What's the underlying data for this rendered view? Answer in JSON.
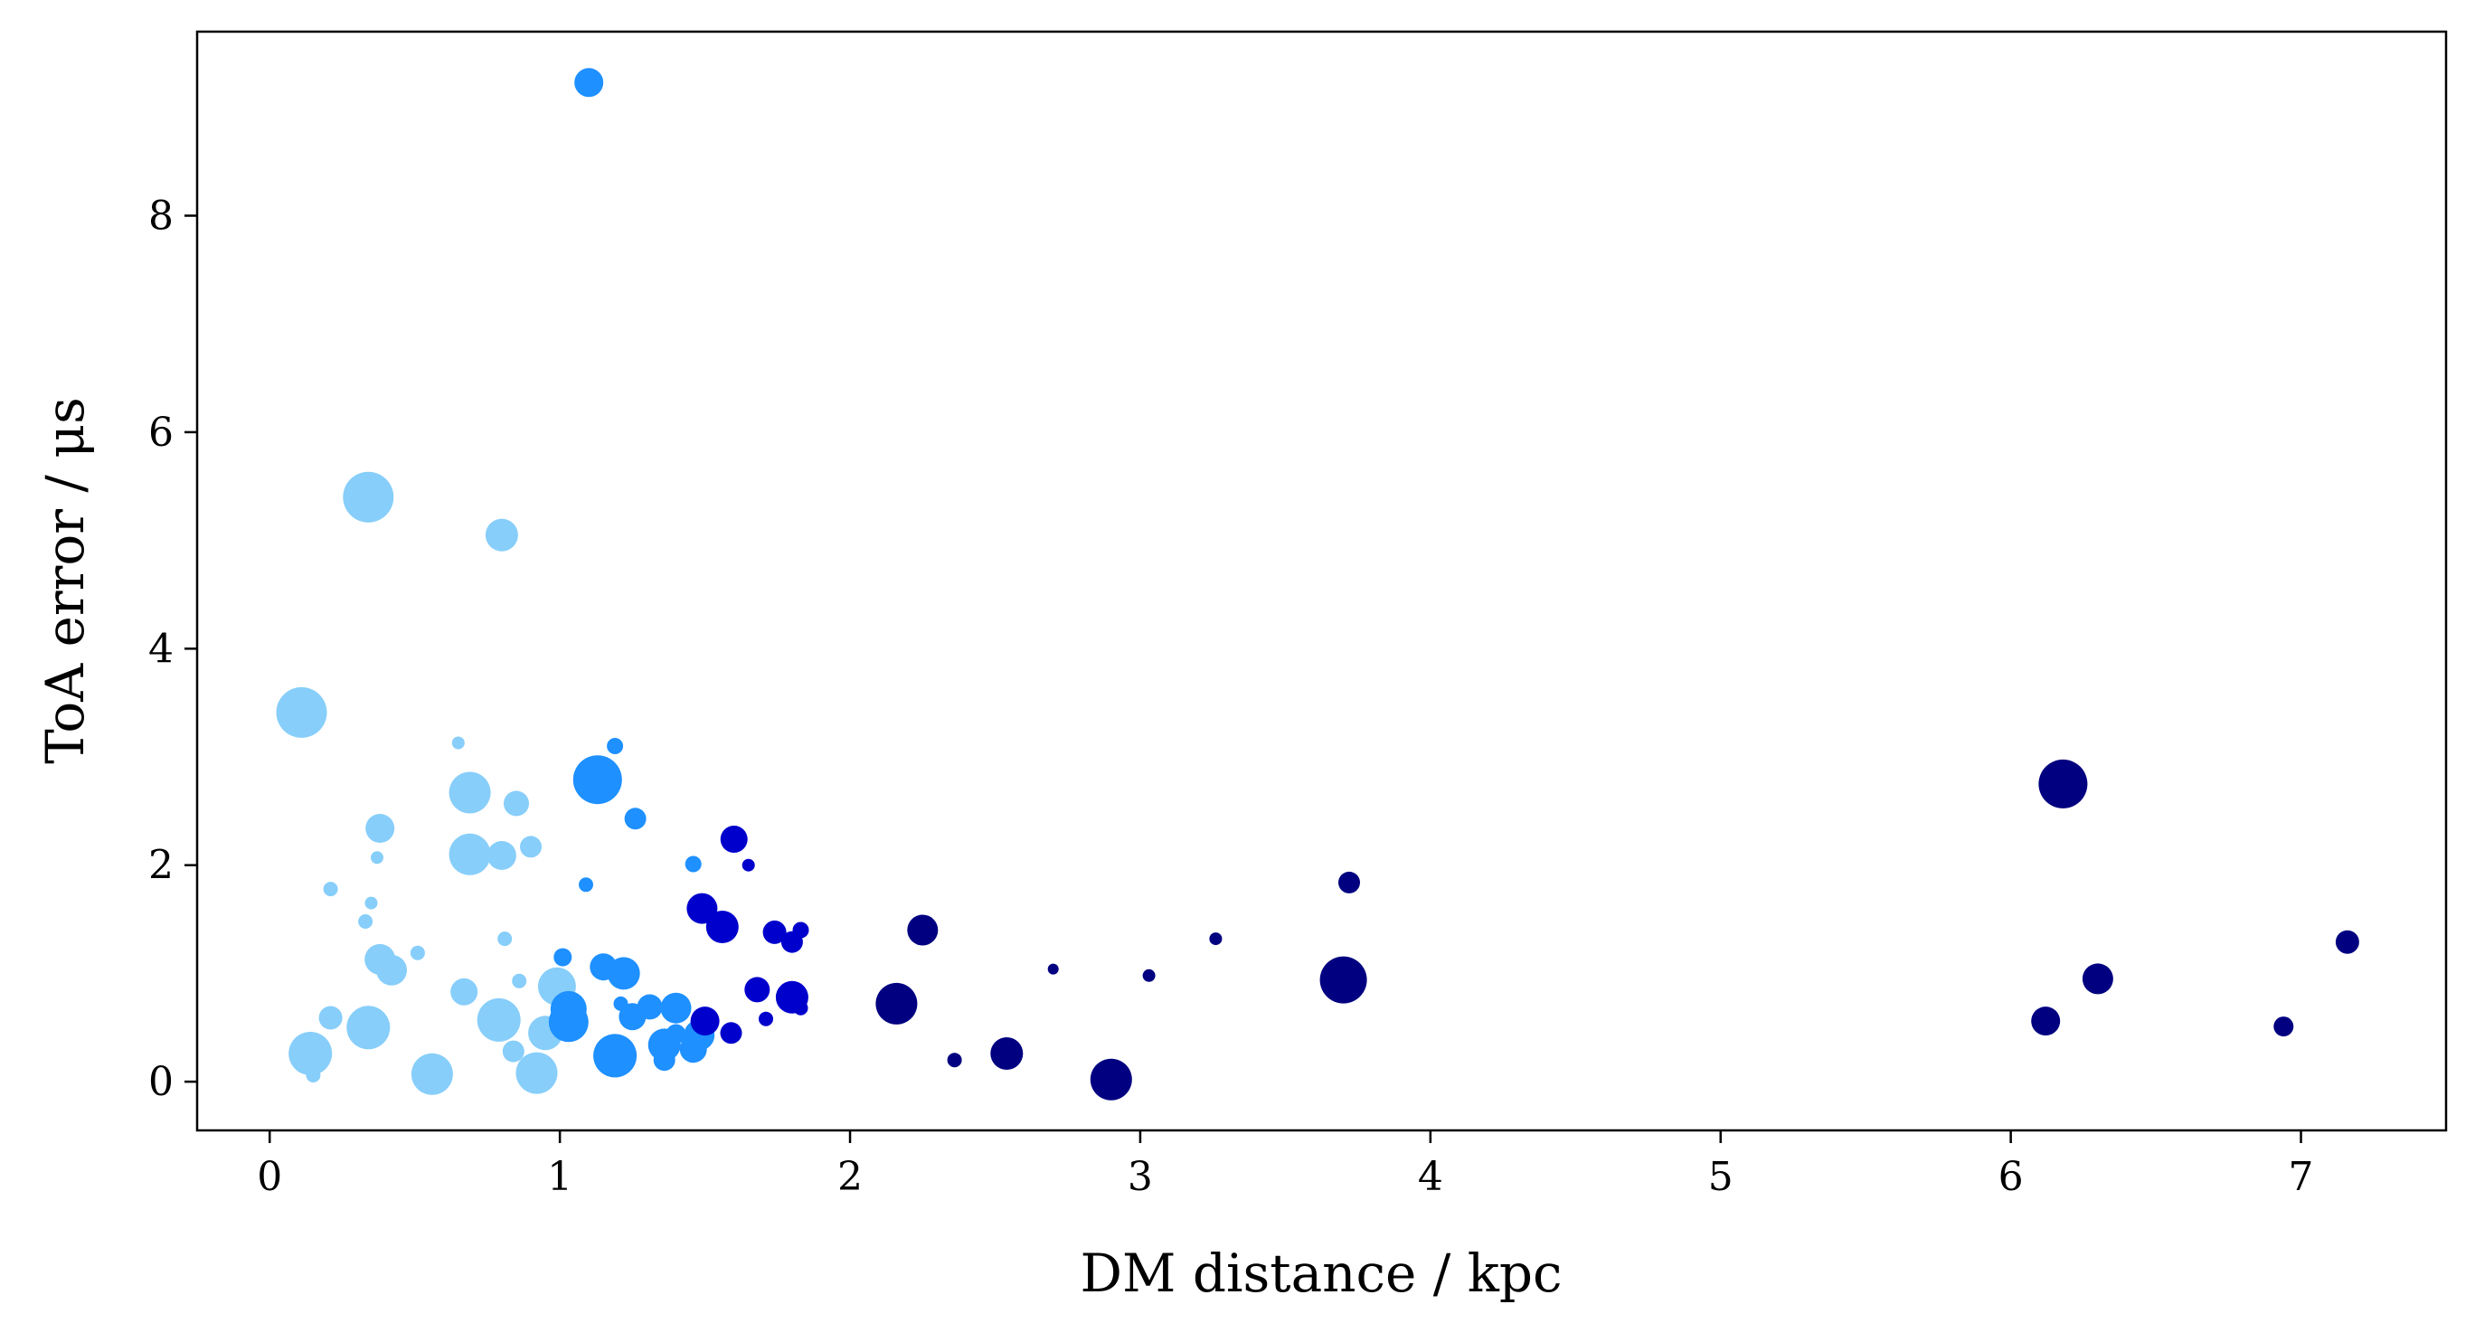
{
  "chart_data": {
    "type": "scatter",
    "title": "",
    "xlabel": "DM distance / kpc",
    "ylabel": "ToA error / μs",
    "xlim": [
      -0.25,
      7.5
    ],
    "ylim": [
      -0.45,
      9.7
    ],
    "xticks": [
      0,
      1,
      2,
      3,
      4,
      5,
      6,
      7
    ],
    "yticks": [
      0,
      2,
      4,
      6,
      8
    ],
    "xtick_labels": [
      "0",
      "1",
      "2",
      "3",
      "4",
      "5",
      "6",
      "7"
    ],
    "ytick_labels": [
      "0",
      "2",
      "4",
      "6",
      "8"
    ],
    "grid": false,
    "legend": "none",
    "colors": {
      "light_sky_blue": "#87CEFA",
      "dodger_blue": "#1E90FF",
      "medium_blue": "#0000CD",
      "navy": "#000080"
    },
    "points": [
      {
        "x": 0.11,
        "y": 3.41,
        "size": 28,
        "color": "#87CEFA"
      },
      {
        "x": 0.34,
        "y": 5.4,
        "size": 28,
        "color": "#87CEFA"
      },
      {
        "x": 0.8,
        "y": 5.05,
        "size": 18,
        "color": "#87CEFA"
      },
      {
        "x": 0.65,
        "y": 3.13,
        "size": 7,
        "color": "#87CEFA"
      },
      {
        "x": 0.69,
        "y": 2.67,
        "size": 23,
        "color": "#87CEFA"
      },
      {
        "x": 0.69,
        "y": 2.1,
        "size": 23,
        "color": "#87CEFA"
      },
      {
        "x": 0.85,
        "y": 2.57,
        "size": 14,
        "color": "#87CEFA"
      },
      {
        "x": 0.38,
        "y": 2.34,
        "size": 16,
        "color": "#87CEFA"
      },
      {
        "x": 0.8,
        "y": 2.09,
        "size": 16,
        "color": "#87CEFA"
      },
      {
        "x": 0.9,
        "y": 2.17,
        "size": 12,
        "color": "#87CEFA"
      },
      {
        "x": 0.37,
        "y": 2.07,
        "size": 7,
        "color": "#87CEFA"
      },
      {
        "x": 0.21,
        "y": 1.78,
        "size": 8,
        "color": "#87CEFA"
      },
      {
        "x": 0.35,
        "y": 1.65,
        "size": 7,
        "color": "#87CEFA"
      },
      {
        "x": 0.33,
        "y": 1.48,
        "size": 8,
        "color": "#87CEFA"
      },
      {
        "x": 0.81,
        "y": 1.32,
        "size": 8,
        "color": "#87CEFA"
      },
      {
        "x": 0.51,
        "y": 1.19,
        "size": 8,
        "color": "#87CEFA"
      },
      {
        "x": 0.38,
        "y": 1.13,
        "size": 17,
        "color": "#87CEFA"
      },
      {
        "x": 0.42,
        "y": 1.03,
        "size": 17,
        "color": "#87CEFA"
      },
      {
        "x": 0.86,
        "y": 0.93,
        "size": 8,
        "color": "#87CEFA"
      },
      {
        "x": 0.99,
        "y": 0.88,
        "size": 21,
        "color": "#87CEFA"
      },
      {
        "x": 0.67,
        "y": 0.83,
        "size": 15,
        "color": "#87CEFA"
      },
      {
        "x": 0.21,
        "y": 0.59,
        "size": 13,
        "color": "#87CEFA"
      },
      {
        "x": 0.79,
        "y": 0.57,
        "size": 24,
        "color": "#87CEFA"
      },
      {
        "x": 0.34,
        "y": 0.5,
        "size": 24,
        "color": "#87CEFA"
      },
      {
        "x": 0.95,
        "y": 0.45,
        "size": 19,
        "color": "#87CEFA"
      },
      {
        "x": 0.84,
        "y": 0.28,
        "size": 12,
        "color": "#87CEFA"
      },
      {
        "x": 0.14,
        "y": 0.26,
        "size": 24,
        "color": "#87CEFA"
      },
      {
        "x": 0.15,
        "y": 0.06,
        "size": 8,
        "color": "#87CEFA"
      },
      {
        "x": 0.56,
        "y": 0.07,
        "size": 23,
        "color": "#87CEFA"
      },
      {
        "x": 0.92,
        "y": 0.08,
        "size": 23,
        "color": "#87CEFA"
      },
      {
        "x": 1.1,
        "y": 9.23,
        "size": 16,
        "color": "#1E90FF"
      },
      {
        "x": 1.19,
        "y": 3.1,
        "size": 9,
        "color": "#1E90FF"
      },
      {
        "x": 1.13,
        "y": 2.79,
        "size": 27,
        "color": "#1E90FF"
      },
      {
        "x": 1.26,
        "y": 2.43,
        "size": 12,
        "color": "#1E90FF"
      },
      {
        "x": 1.09,
        "y": 1.82,
        "size": 8,
        "color": "#1E90FF"
      },
      {
        "x": 1.46,
        "y": 2.01,
        "size": 9,
        "color": "#1E90FF"
      },
      {
        "x": 1.01,
        "y": 1.15,
        "size": 10,
        "color": "#1E90FF"
      },
      {
        "x": 1.15,
        "y": 1.06,
        "size": 15,
        "color": "#1E90FF"
      },
      {
        "x": 1.22,
        "y": 1.0,
        "size": 18,
        "color": "#1E90FF"
      },
      {
        "x": 1.21,
        "y": 0.72,
        "size": 8,
        "color": "#1E90FF"
      },
      {
        "x": 1.31,
        "y": 0.69,
        "size": 14,
        "color": "#1E90FF"
      },
      {
        "x": 1.4,
        "y": 0.68,
        "size": 17,
        "color": "#1E90FF"
      },
      {
        "x": 1.03,
        "y": 0.67,
        "size": 20,
        "color": "#1E90FF"
      },
      {
        "x": 1.25,
        "y": 0.6,
        "size": 15,
        "color": "#1E90FF"
      },
      {
        "x": 1.03,
        "y": 0.55,
        "size": 22,
        "color": "#1E90FF"
      },
      {
        "x": 1.4,
        "y": 0.44,
        "size": 11,
        "color": "#1E90FF"
      },
      {
        "x": 1.48,
        "y": 0.43,
        "size": 17,
        "color": "#1E90FF"
      },
      {
        "x": 1.36,
        "y": 0.34,
        "size": 18,
        "color": "#1E90FF"
      },
      {
        "x": 1.46,
        "y": 0.3,
        "size": 15,
        "color": "#1E90FF"
      },
      {
        "x": 1.19,
        "y": 0.24,
        "size": 24,
        "color": "#1E90FF"
      },
      {
        "x": 1.36,
        "y": 0.2,
        "size": 12,
        "color": "#1E90FF"
      },
      {
        "x": 1.6,
        "y": 2.24,
        "size": 15,
        "color": "#0000CD"
      },
      {
        "x": 1.65,
        "y": 2.0,
        "size": 7,
        "color": "#0000CD"
      },
      {
        "x": 1.49,
        "y": 1.6,
        "size": 17,
        "color": "#0000CD"
      },
      {
        "x": 1.56,
        "y": 1.43,
        "size": 18,
        "color": "#0000CD"
      },
      {
        "x": 1.74,
        "y": 1.38,
        "size": 13,
        "color": "#0000CD"
      },
      {
        "x": 1.83,
        "y": 1.4,
        "size": 9,
        "color": "#0000CD"
      },
      {
        "x": 1.8,
        "y": 1.29,
        "size": 12,
        "color": "#0000CD"
      },
      {
        "x": 1.68,
        "y": 0.85,
        "size": 14,
        "color": "#0000CD"
      },
      {
        "x": 1.8,
        "y": 0.78,
        "size": 18,
        "color": "#0000CD"
      },
      {
        "x": 1.83,
        "y": 0.68,
        "size": 8,
        "color": "#0000CD"
      },
      {
        "x": 1.71,
        "y": 0.58,
        "size": 8,
        "color": "#0000CD"
      },
      {
        "x": 1.5,
        "y": 0.56,
        "size": 16,
        "color": "#0000CD"
      },
      {
        "x": 1.59,
        "y": 0.45,
        "size": 12,
        "color": "#0000CD"
      },
      {
        "x": 2.25,
        "y": 1.4,
        "size": 17,
        "color": "#000080"
      },
      {
        "x": 2.16,
        "y": 0.72,
        "size": 23,
        "color": "#000080"
      },
      {
        "x": 2.36,
        "y": 0.2,
        "size": 8,
        "color": "#000080"
      },
      {
        "x": 2.54,
        "y": 0.26,
        "size": 18,
        "color": "#000080"
      },
      {
        "x": 2.7,
        "y": 1.04,
        "size": 6,
        "color": "#000080"
      },
      {
        "x": 3.03,
        "y": 0.98,
        "size": 7,
        "color": "#000080"
      },
      {
        "x": 2.9,
        "y": 0.02,
        "size": 23,
        "color": "#000080"
      },
      {
        "x": 3.26,
        "y": 1.32,
        "size": 7,
        "color": "#000080"
      },
      {
        "x": 3.72,
        "y": 1.84,
        "size": 12,
        "color": "#000080"
      },
      {
        "x": 3.7,
        "y": 0.94,
        "size": 26,
        "color": "#000080"
      },
      {
        "x": 6.18,
        "y": 2.75,
        "size": 27,
        "color": "#000080"
      },
      {
        "x": 6.12,
        "y": 0.56,
        "size": 16,
        "color": "#000080"
      },
      {
        "x": 6.3,
        "y": 0.95,
        "size": 17,
        "color": "#000080"
      },
      {
        "x": 6.94,
        "y": 0.51,
        "size": 11,
        "color": "#000080"
      },
      {
        "x": 7.16,
        "y": 1.29,
        "size": 13,
        "color": "#000080"
      }
    ]
  }
}
